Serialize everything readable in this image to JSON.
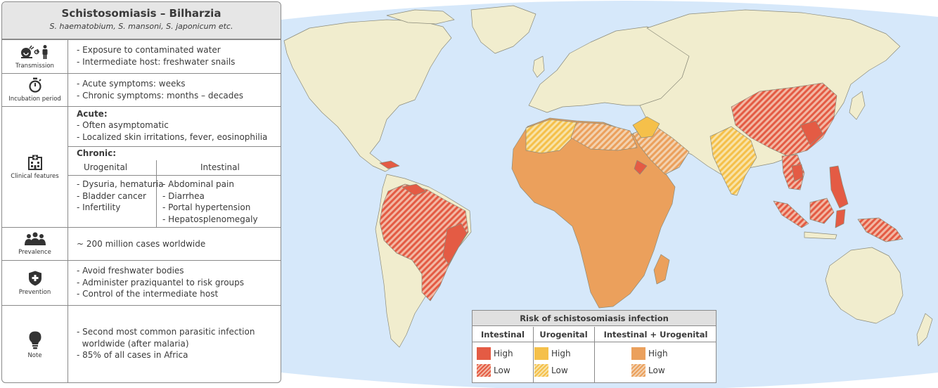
{
  "card": {
    "title": "Schistosomiasis – Bilharzia",
    "subtitle": "S. haematobium, S. mansoni, S. japonicum etc."
  },
  "transmission": {
    "label": "Transmission",
    "icon": "snail-person-icon",
    "lines": [
      "- Exposure to contaminated water",
      "- Intermediate host: freshwater snails"
    ]
  },
  "incubation": {
    "label": "Incubation period",
    "icon": "stopwatch-icon",
    "lines": [
      "- Acute symptoms: weeks",
      "- Chronic symptoms: months – decades"
    ]
  },
  "clinical": {
    "label": "Clinical features",
    "icon": "hospital-icon",
    "acute_heading": "Acute:",
    "acute_lines": [
      "- Often asymptomatic",
      "- Localized skin irritations, fever, eosinophilia"
    ],
    "chronic_heading": "Chronic:",
    "urogenital_heading": "Urogenital",
    "intestinal_heading": "Intestinal",
    "urogenital_lines": [
      "- Dysuria, hematuria",
      "- Bladder cancer",
      "- Infertility"
    ],
    "intestinal_lines": [
      "- Abdominal pain",
      "- Diarrhea",
      "- Portal hypertension",
      "- Hepatosplenomegaly"
    ]
  },
  "prevalence": {
    "label": "Prevalence",
    "icon": "people-icon",
    "lines": [
      "~ 200 million cases worldwide"
    ]
  },
  "prevention": {
    "label": "Prevention",
    "icon": "shield-cross-icon",
    "lines": [
      "- Avoid freshwater bodies",
      "- Administer praziquantel to risk groups",
      "- Control of the intermediate host"
    ]
  },
  "note": {
    "label": "Note",
    "icon": "lightbulb-icon",
    "lines": [
      "- Second most common parasitic infection",
      "  worldwide (after malaria)",
      "- 85% of all cases in Africa"
    ]
  },
  "legend": {
    "title": "Risk of schistosomiasis infection",
    "columns": [
      "Intestinal",
      "Urogenital",
      "Intestinal + Urogenital"
    ],
    "high": "High",
    "low": "Low"
  },
  "colors": {
    "ocean": "#d6e8fa",
    "land": "#f1edce",
    "intestinal": "#e45b44",
    "urogenital": "#f5c04a",
    "both": "#eba05c",
    "border": "#8b8b7a"
  }
}
